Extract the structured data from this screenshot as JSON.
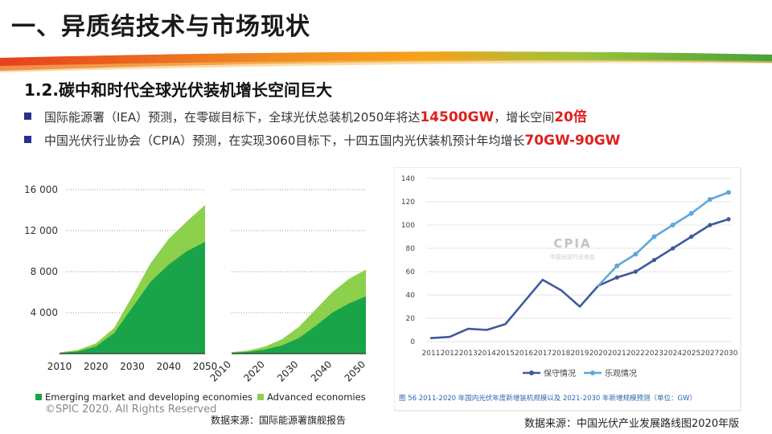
{
  "header": {
    "title": "一、异质结技术与市场现状"
  },
  "section": {
    "subtitle": "1.2.碳中和时代全球光伏装机增长空间巨大"
  },
  "bullets": [
    {
      "pre": "国际能源署（IEA）预测，在零碳目标下，全球光伏总装机2050年将达",
      "hl1": "14500GW",
      "mid": "，增长空间",
      "hl2": "20倍"
    },
    {
      "pre": "中国光伏行业协会（CPIA）预测，在实现3060目标下，十四五国内光伏装机预计年均增长",
      "hl1": "70GW-90GW"
    }
  ],
  "colors": {
    "band_red": "#e8401c",
    "band_orange": "#f6a21a",
    "band_green": "#4aa03a",
    "dark_green": "#1aa44a",
    "light_green": "#8cd04c",
    "line_dark": "#3d5a9e",
    "line_light": "#5fa8dc",
    "highlight": "#e0201b"
  },
  "chart_data": [
    {
      "type": "area",
      "title": "",
      "ylim": [
        0,
        16000
      ],
      "y_ticks": [
        "4 000",
        "8 000",
        "12 000",
        "16 000"
      ],
      "y_tick_values": [
        4000,
        8000,
        12000,
        16000
      ],
      "panels": [
        {
          "name": "left",
          "x_ticks": [
            "2010",
            "2020",
            "2030",
            "2040",
            "2050"
          ]
        },
        {
          "name": "right",
          "x_ticks": [
            "2010",
            "2020",
            "2030",
            "2040",
            "2050"
          ]
        }
      ],
      "x": [
        2010,
        2015,
        2020,
        2025,
        2030,
        2035,
        2040,
        2045,
        2050
      ],
      "series": [
        {
          "name": "Emerging market and developing economies",
          "panel": "left",
          "values": [
            60,
            220,
            700,
            2000,
            4500,
            7000,
            8700,
            10000,
            10900
          ]
        },
        {
          "name": "Advanced economies (stacked, left)",
          "panel": "left",
          "values": [
            120,
            350,
            1000,
            2500,
            5600,
            8800,
            11200,
            12900,
            14500
          ]
        },
        {
          "name": "Emerging market (right)",
          "panel": "right",
          "values": [
            80,
            180,
            400,
            800,
            1500,
            2700,
            4000,
            4900,
            5600
          ]
        },
        {
          "name": "Advanced economies",
          "panel": "right",
          "values": [
            150,
            300,
            700,
            1400,
            2600,
            4300,
            6000,
            7300,
            8200
          ]
        }
      ],
      "legend": [
        {
          "label": "Emerging market and developing economies",
          "color": "#1aa44a"
        },
        {
          "label": "Advanced economies",
          "color": "#8cd04c"
        }
      ],
      "source": "数据来源：国际能源署旗舰报告",
      "copyright": "©SPIC 2020. All Rights Reserved"
    },
    {
      "type": "line",
      "ylim": [
        0,
        140
      ],
      "y_ticks": [
        0,
        20,
        40,
        60,
        80,
        100,
        120,
        140
      ],
      "categories": [
        "2011",
        "2012",
        "2013",
        "2014",
        "2015",
        "2016",
        "2017",
        "2018",
        "2019",
        "2020",
        "2021",
        "2022",
        "2023",
        "2024",
        "2025",
        "2027",
        "2030"
      ],
      "series": [
        {
          "name": "保守情况",
          "color": "#3d5a9e",
          "values": [
            3,
            4,
            11,
            10,
            15,
            34,
            53,
            44,
            30,
            48,
            55,
            60,
            70,
            80,
            90,
            100,
            105
          ]
        },
        {
          "name": "乐观情况",
          "color": "#5fa8dc",
          "values": [
            null,
            null,
            null,
            null,
            null,
            null,
            null,
            null,
            null,
            48,
            65,
            75,
            90,
            100,
            110,
            122,
            128
          ]
        }
      ],
      "watermark": {
        "logo": "CPIA",
        "text": "中国光伏行业协会"
      },
      "caption": "图 56   2011-2020 年国内光伏年度新增装机规模以及 2021-2030 年新增规模预测（单位：GW）",
      "source": "数据来源：中国光伏产业发展路线图2020年版"
    }
  ]
}
